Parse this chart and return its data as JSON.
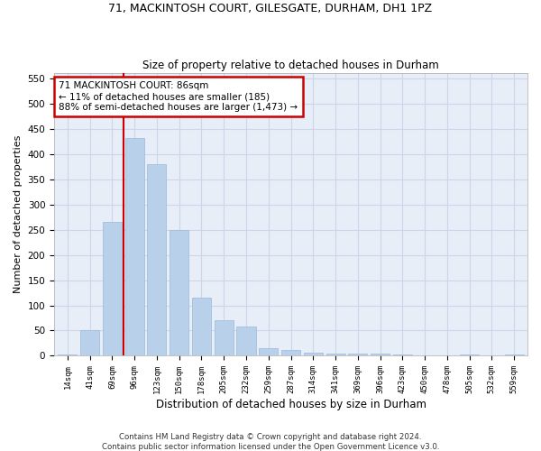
{
  "title1": "71, MACKINTOSH COURT, GILESGATE, DURHAM, DH1 1PZ",
  "title2": "Size of property relative to detached houses in Durham",
  "xlabel": "Distribution of detached houses by size in Durham",
  "ylabel": "Number of detached properties",
  "bar_color": "#b8d0ea",
  "bar_edge_color": "#99bada",
  "bar_labels": [
    "14sqm",
    "41sqm",
    "69sqm",
    "96sqm",
    "123sqm",
    "150sqm",
    "178sqm",
    "205sqm",
    "232sqm",
    "259sqm",
    "287sqm",
    "314sqm",
    "341sqm",
    "369sqm",
    "396sqm",
    "423sqm",
    "450sqm",
    "478sqm",
    "505sqm",
    "532sqm",
    "559sqm"
  ],
  "bar_values": [
    3,
    50,
    265,
    432,
    380,
    250,
    115,
    70,
    58,
    15,
    12,
    7,
    5,
    4,
    4,
    3,
    0,
    0,
    3,
    0,
    3
  ],
  "bar_width": 0.85,
  "ylim": [
    0,
    560
  ],
  "yticks": [
    0,
    50,
    100,
    150,
    200,
    250,
    300,
    350,
    400,
    450,
    500,
    550
  ],
  "annotation_line1": "71 MACKINTOSH COURT: 86sqm",
  "annotation_line2": "← 11% of detached houses are smaller (185)",
  "annotation_line3": "88% of semi-detached houses are larger (1,473) →",
  "annotation_box_color": "#ffffff",
  "annotation_box_edge": "#cc0000",
  "red_line_color": "#cc0000",
  "grid_color": "#ccd6e8",
  "background_color": "#e8eef8",
  "footnote": "Contains HM Land Registry data © Crown copyright and database right 2024.\nContains public sector information licensed under the Open Government Licence v3.0."
}
